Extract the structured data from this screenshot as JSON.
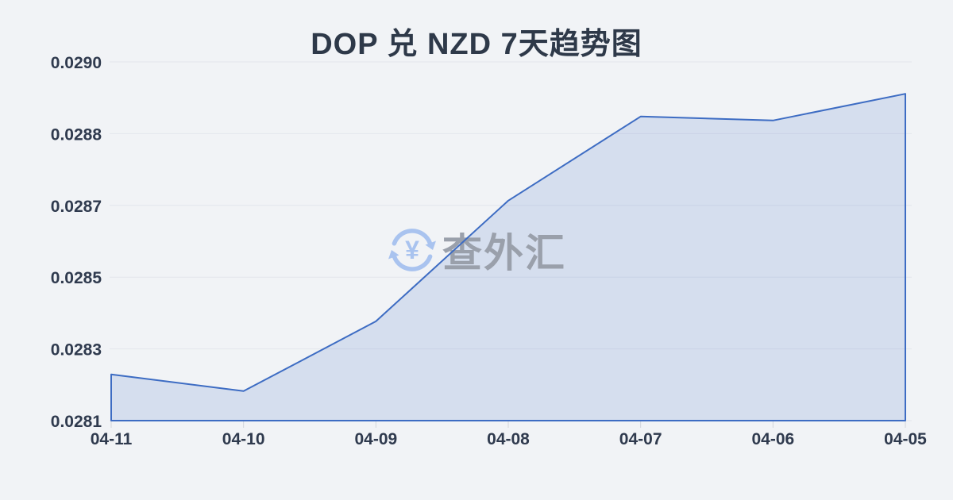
{
  "page": {
    "background_color": "#f1f3f6"
  },
  "chart": {
    "title": "DOP 兑 NZD 7天趋势图"
  },
  "watermark": {
    "icon": "currency-exchange-refresh-icon",
    "currency_symbol": "¥",
    "brand_text": "查外汇",
    "icon_color": "#a9c3ef",
    "text_color": "#9aa0ab"
  },
  "chart_data": {
    "type": "area",
    "title": "DOP 兑 NZD 7天趋势图",
    "categories": [
      "04-11",
      "04-10",
      "04-09",
      "04-08",
      "04-07",
      "04-06",
      "04-05"
    ],
    "series": [
      {
        "name": "DOP/NZD",
        "values": [
          0.028236,
          0.028194,
          0.028369,
          0.028672,
          0.028883,
          0.028873,
          0.02894
        ]
      }
    ],
    "xlabel": "",
    "ylabel": "",
    "y_axis": {
      "min": 0.02812,
      "max": 0.02902,
      "ticks": [
        {
          "value": 0.02902,
          "label": "0.0290"
        },
        {
          "value": 0.02884,
          "label": "0.0288"
        },
        {
          "value": 0.02866,
          "label": "0.0287"
        },
        {
          "value": 0.02848,
          "label": "0.0285"
        },
        {
          "value": 0.0283,
          "label": "0.0283"
        },
        {
          "value": 0.02812,
          "label": "0.0281"
        }
      ]
    },
    "grid": true,
    "legend": false,
    "colors": {
      "line": "#3d6cc3",
      "fill": "rgba(70,115,200,0.16)",
      "grid": "#e3e6ec",
      "tick": "#d2d5db",
      "axis_text": "#2f3a4e",
      "title_text": "#2e3949"
    }
  }
}
